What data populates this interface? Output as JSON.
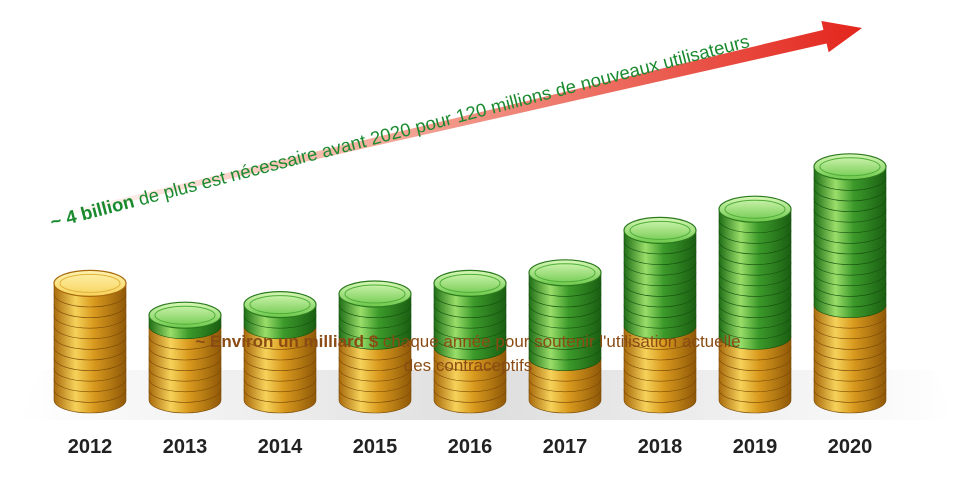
{
  "chart_data": {
    "type": "bar",
    "categories": [
      "2012",
      "2013",
      "2014",
      "2015",
      "2016",
      "2017",
      "2018",
      "2019",
      "2020"
    ],
    "series": [
      {
        "values": [
          11,
          7,
          7,
          6,
          5,
          4,
          7,
          6,
          9
        ]
      },
      {
        "values": [
          0,
          1,
          2,
          4,
          6,
          8,
          9,
          12,
          13
        ]
      }
    ],
    "annotations": {
      "arrow_bold": "~ 4 billion",
      "arrow_text": " de plus est nécessaire avant 2020 pour 120 millions de nouveaux utilisateurs",
      "base_bold": "~ Environ un milliard $",
      "base_text": " chaque année pour soutenir l'utilisation actuelle",
      "base_text2": "des contraceptifs"
    },
    "colors": {
      "gold": "#d99a1e",
      "gold_light": "#f6d25a",
      "green": "#3c9a2a",
      "green_light": "#9ade6a",
      "arrow": "#e3251c",
      "arrow_text": "#1a8a2e",
      "base_text": "#8a4b14"
    }
  }
}
